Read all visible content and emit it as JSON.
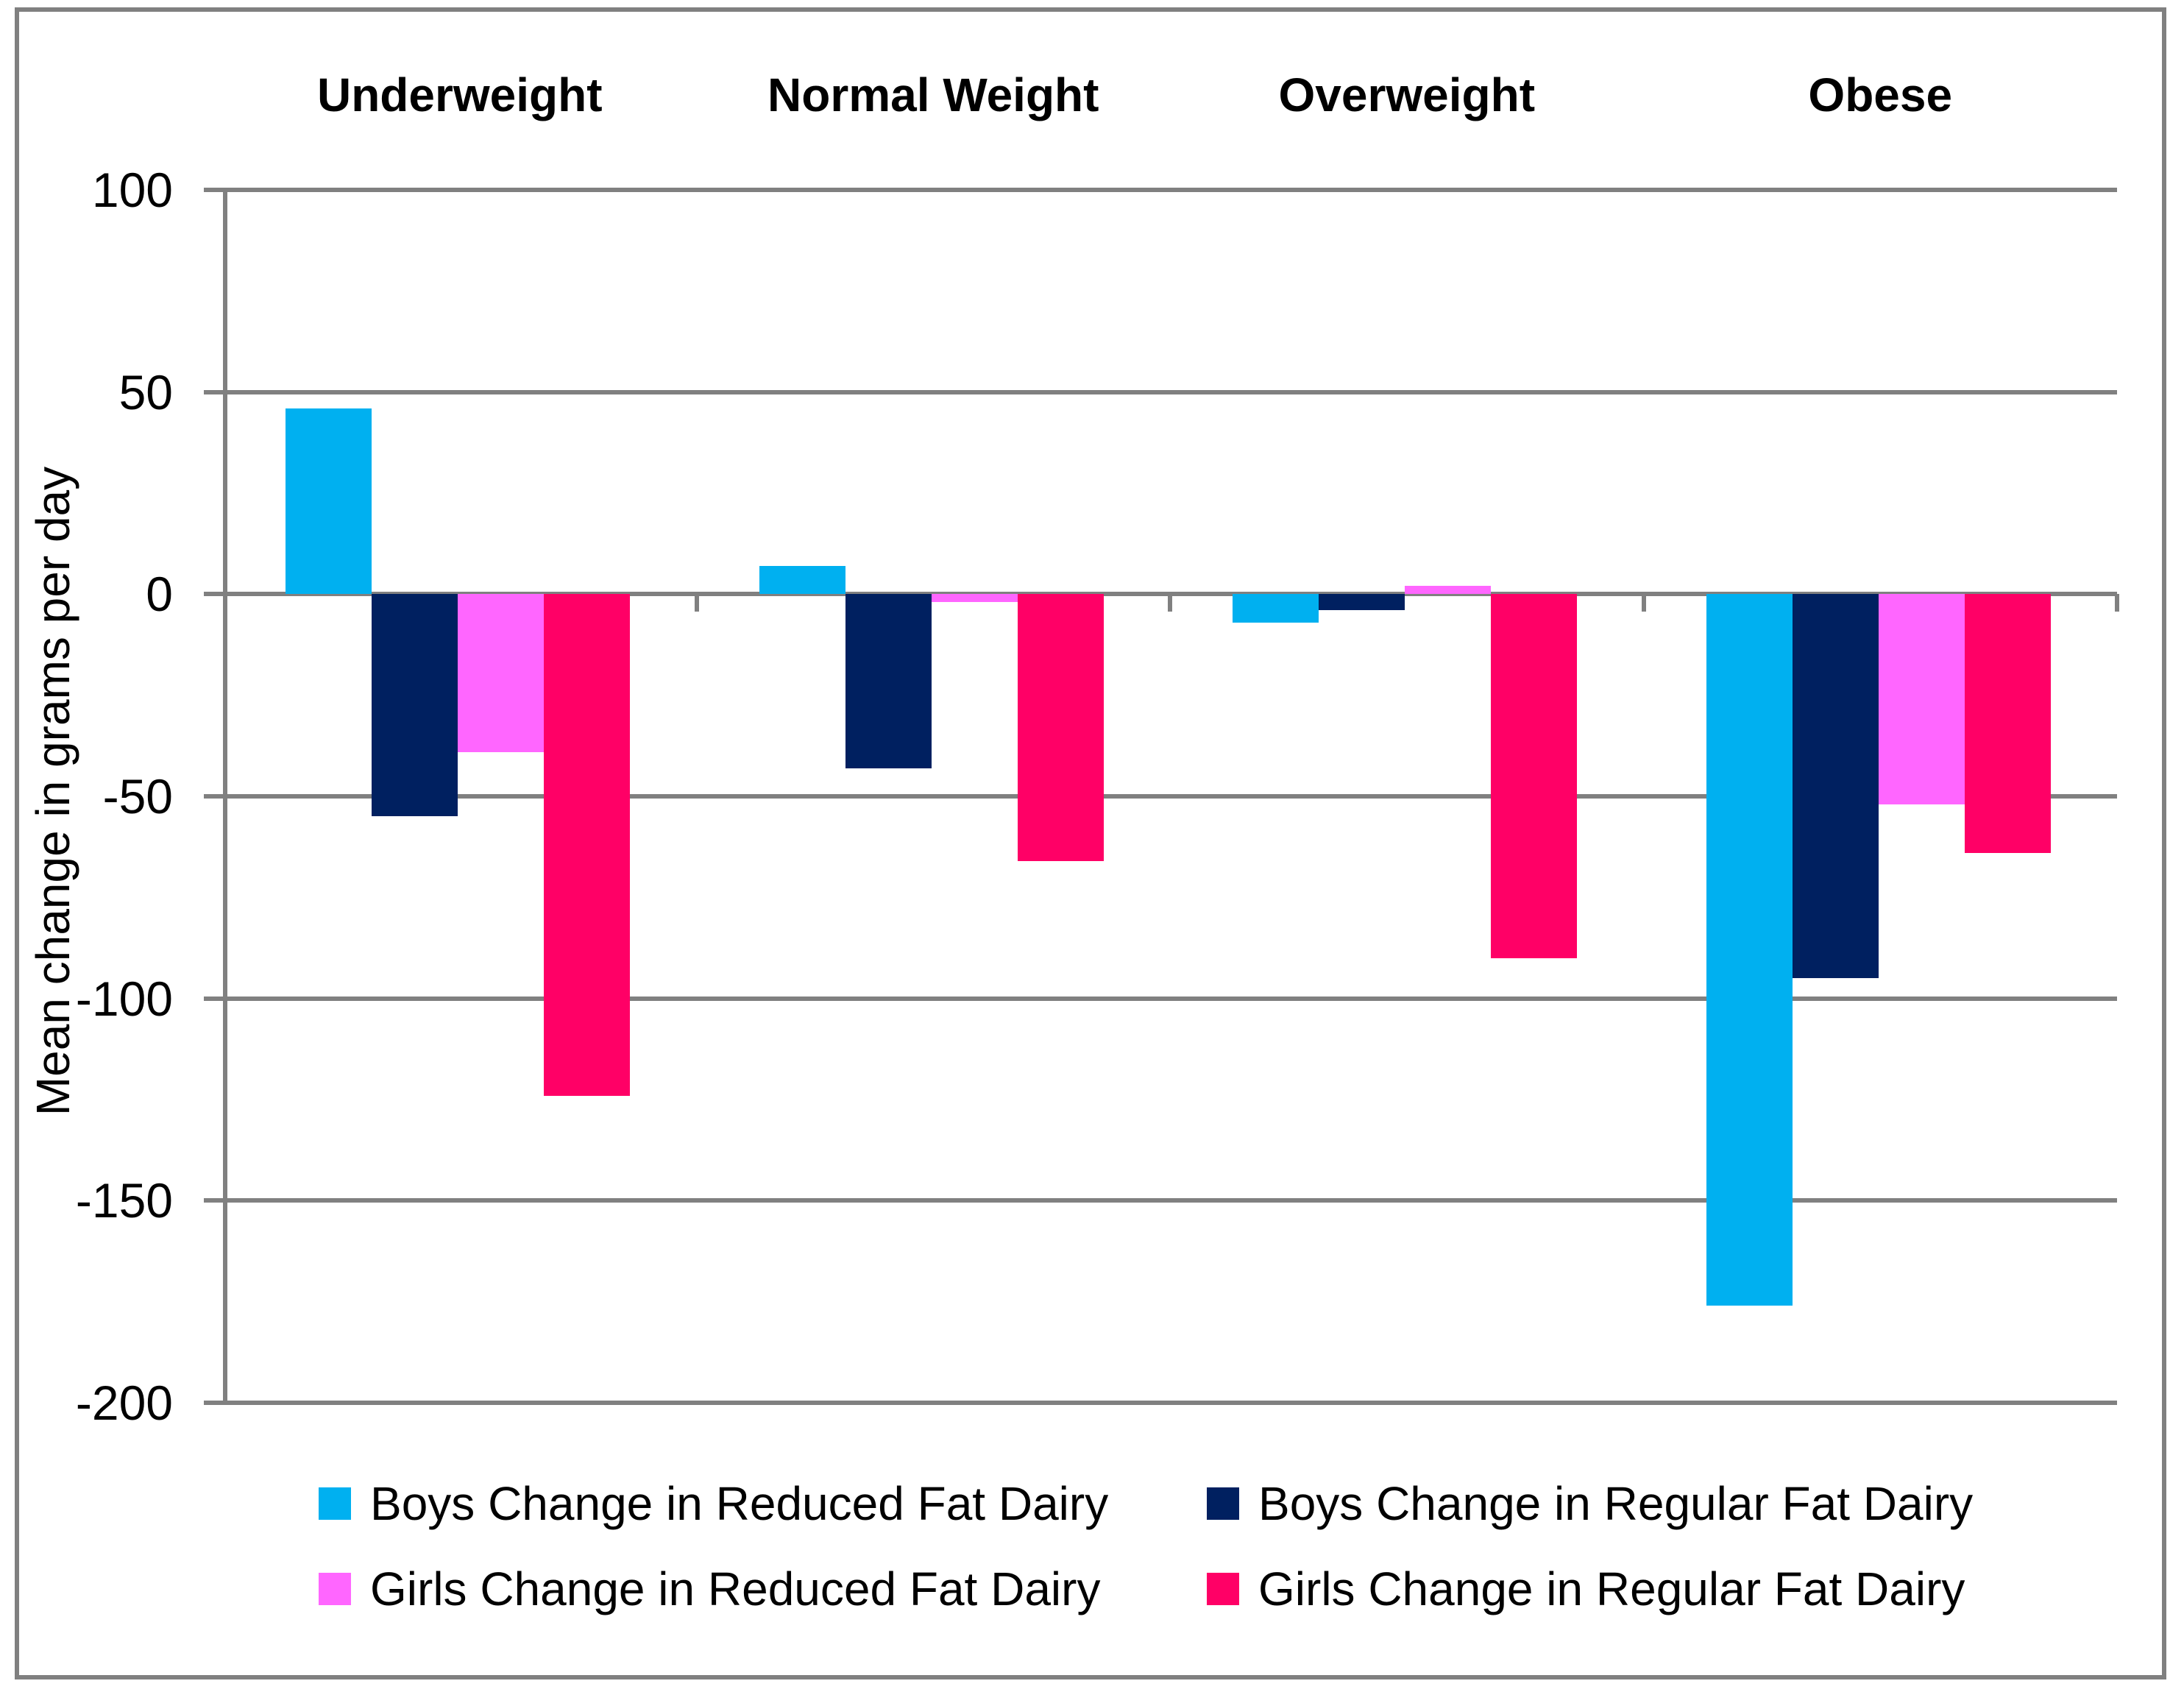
{
  "chart_data": {
    "type": "bar",
    "title": "",
    "xlabel": "",
    "ylabel": "Mean change in grams per day",
    "categories": [
      "Underweight",
      "Normal Weight",
      "Overweight",
      "Obese"
    ],
    "series": [
      {
        "name": "Boys Change in Reduced Fat Dairy",
        "color": "#00B0F0",
        "values": [
          46,
          7,
          -7,
          -176
        ]
      },
      {
        "name": "Boys Change in Regular Fat Dairy",
        "color": "#002060",
        "values": [
          -55,
          -43,
          -4,
          -95
        ]
      },
      {
        "name": "Girls Change in Reduced Fat Dairy",
        "color": "#FF66FF",
        "values": [
          -39,
          -2,
          2,
          -52
        ]
      },
      {
        "name": "Girls Change in Regular Fat Dairy",
        "color": "#FF0066",
        "values": [
          -124,
          -66,
          -90,
          -64
        ]
      }
    ],
    "y_ticks": [
      100,
      50,
      0,
      -50,
      -100,
      -150,
      -200
    ],
    "ylim": [
      -200,
      100
    ],
    "grid": true,
    "gridline_color": "#808080",
    "legend_position": "bottom"
  }
}
